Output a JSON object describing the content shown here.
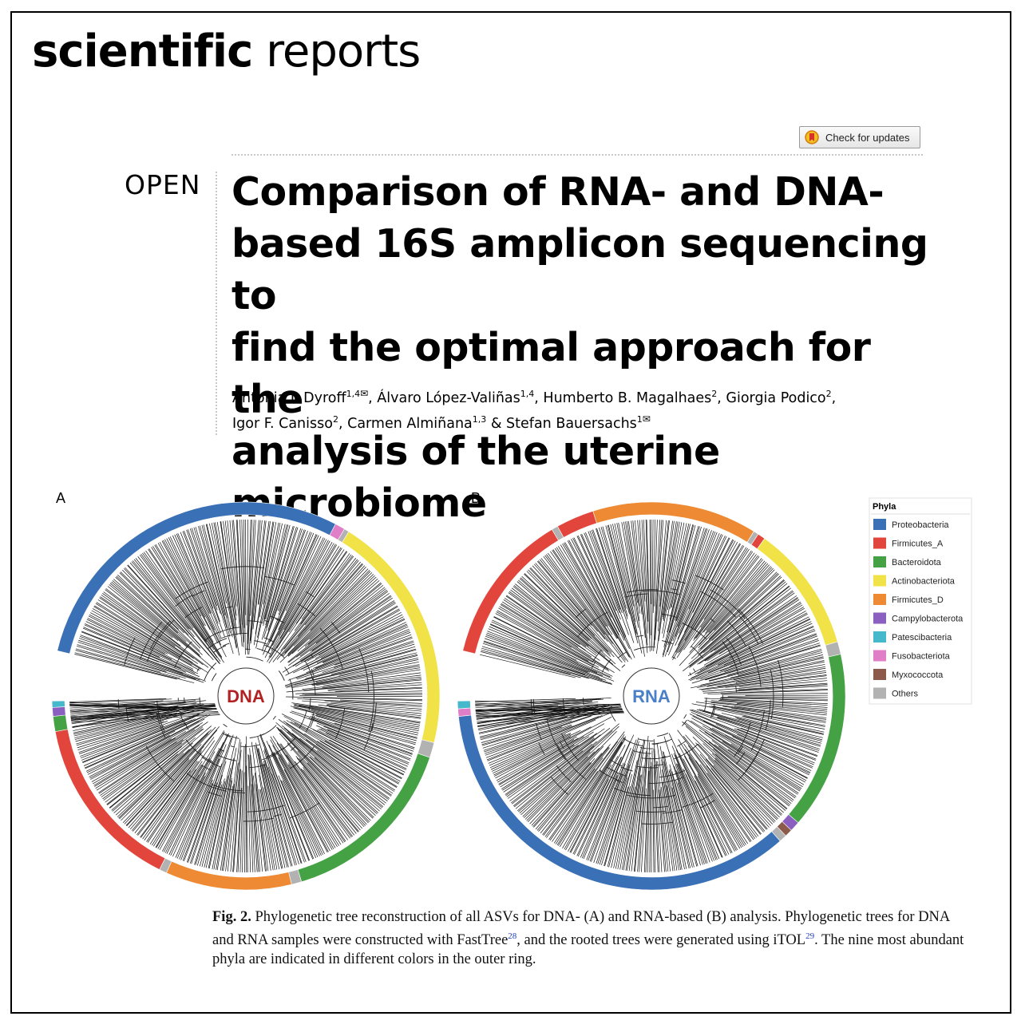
{
  "journal": {
    "name_bold": "scientific",
    "name_regular": "reports"
  },
  "updates_button": {
    "label": "Check for updates"
  },
  "open_label": "OPEN",
  "title_lines": [
    "Comparison of RNA- and DNA-",
    "based 16S amplicon sequencing to",
    "find the optimal approach for the",
    "analysis of the uterine microbiome"
  ],
  "authors": [
    {
      "name": "Antonia I. Dyroff",
      "aff": "1,4",
      "mail": "✉",
      "sep": ", "
    },
    {
      "name": "Álvaro López-Valiñas",
      "aff": "1,4",
      "mail": "",
      "sep": ", "
    },
    {
      "name": "Humberto B. Magalhaes",
      "aff": "2",
      "mail": "",
      "sep": ", "
    },
    {
      "name": "Giorgia Podico",
      "aff": "2",
      "mail": "",
      "sep": ", "
    },
    {
      "name": "Igor F. Canisso",
      "aff": "2",
      "mail": "",
      "sep": ", "
    },
    {
      "name": "Carmen Almiñana",
      "aff": "1,3",
      "mail": "",
      "sep": " & "
    },
    {
      "name": "Stefan Bauersachs",
      "aff": "1",
      "mail": "✉",
      "sep": ""
    }
  ],
  "figure": {
    "panel_a": "A",
    "panel_b": "B",
    "center_a": "DNA",
    "center_b": "RNA",
    "center_a_color": "#b22222",
    "center_b_color": "#4a80c8",
    "legend_title": "Phyla",
    "legend": [
      {
        "name": "Proteobacteria",
        "color": "#3a70b5"
      },
      {
        "name": "Firmicutes_A",
        "color": "#e2453c"
      },
      {
        "name": "Bacteroidota",
        "color": "#44a244"
      },
      {
        "name": "Actinobacteriota",
        "color": "#f1e247"
      },
      {
        "name": "Firmicutes_D",
        "color": "#ee8a33"
      },
      {
        "name": "Campylobacterota",
        "color": "#8a5fbf"
      },
      {
        "name": "Patescibacteria",
        "color": "#45b8cc"
      },
      {
        "name": "Fusobacteriota",
        "color": "#e07ec7"
      },
      {
        "name": "Myxococcota",
        "color": "#8b5a4a"
      },
      {
        "name": "Others",
        "color": "#b2b2b2"
      }
    ],
    "ring_a": [
      [
        "Proteobacteria",
        0.275
      ],
      [
        "Fusobacteriota",
        0.008
      ],
      [
        "Others",
        0.004
      ],
      [
        "Actinobacteriota",
        0.19
      ],
      [
        "Others",
        0.012
      ],
      [
        "Bacteroidota",
        0.145
      ],
      [
        "Others",
        0.008
      ],
      [
        "Firmicutes_D",
        0.1
      ],
      [
        "Others",
        0.006
      ],
      [
        "Firmicutes_A",
        0.14
      ],
      [
        "Bacteroidota",
        0.012
      ],
      [
        "Campylobacterota",
        0.007
      ],
      [
        "Patescibacteria",
        0.005
      ]
    ],
    "ring_b": [
      [
        "Firmicutes_A",
        0.12
      ],
      [
        "Others",
        0.005
      ],
      [
        "Firmicutes_A",
        0.03
      ],
      [
        "Firmicutes_D",
        0.13
      ],
      [
        "Others",
        0.004
      ],
      [
        "Firmicutes_A",
        0.006
      ],
      [
        "Actinobacteriota",
        0.1
      ],
      [
        "Others",
        0.01
      ],
      [
        "Bacteroidota",
        0.14
      ],
      [
        "Campylobacterota",
        0.008
      ],
      [
        "Myxococcota",
        0.006
      ],
      [
        "Others",
        0.006
      ],
      [
        "Proteobacteria",
        0.33
      ],
      [
        "Fusobacteriota",
        0.006
      ],
      [
        "Patescibacteria",
        0.006
      ]
    ]
  },
  "caption": {
    "fig_label": "Fig. 2.",
    "text1": "Phylogenetic tree reconstruction of all ASVs for DNA- (A) and RNA-based (B) analysis. Phylogenetic trees for DNA and RNA samples were constructed with FastTree",
    "ref1": "28",
    "text2": ", and the rooted trees were generated using iTOL",
    "ref2": "29",
    "text3": ". The nine most abundant phyla are indicated in different colors in the outer ring."
  }
}
